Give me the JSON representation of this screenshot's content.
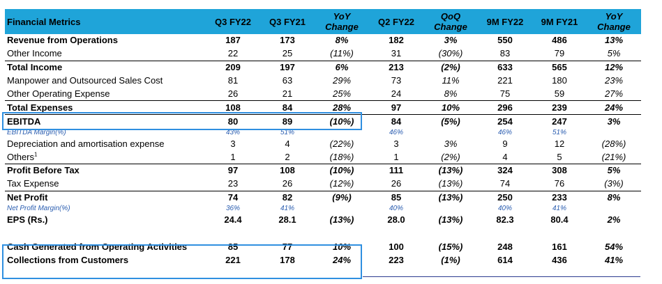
{
  "headers": [
    "Financial Metrics",
    "Q3 FY22",
    "Q3 FY21",
    "YoY\nChange",
    "Q2 FY22",
    "QoQ\nChange",
    "9M FY22",
    "9M FY21",
    "YoY\nChange"
  ],
  "rows": [
    {
      "label": "Revenue from Operations",
      "cells": [
        "187",
        "173",
        "8%",
        "182",
        "3%",
        "550",
        "486",
        "13%"
      ]
    },
    {
      "label": "Other Income",
      "cells": [
        "22",
        "25",
        "(11%)",
        "31",
        "(30%)",
        "83",
        "79",
        "5%"
      ]
    },
    {
      "label": "Total Income",
      "cells": [
        "209",
        "197",
        "6%",
        "213",
        "(2%)",
        "633",
        "565",
        "12%"
      ]
    },
    {
      "label": "Manpower and Outsourced Sales Cost",
      "cells": [
        "81",
        "63",
        "29%",
        "73",
        "11%",
        "221",
        "180",
        "23%"
      ]
    },
    {
      "label": "Other Operating Expense",
      "cells": [
        "26",
        "21",
        "25%",
        "24",
        "8%",
        "75",
        "59",
        "27%"
      ]
    },
    {
      "label": "Total Expenses",
      "cells": [
        "108",
        "84",
        "28%",
        "97",
        "10%",
        "296",
        "239",
        "24%"
      ]
    },
    {
      "label": "EBITDA",
      "cells": [
        "80",
        "89",
        "(10%)",
        "84",
        "(5%)",
        "254",
        "247",
        "3%"
      ]
    },
    {
      "label": "EBITDA Margin(%)",
      "cells": [
        "43%",
        "51%",
        "",
        "46%",
        "",
        "46%",
        "51%",
        ""
      ]
    },
    {
      "label": "Depreciation and amortisation expense",
      "cells": [
        "3",
        "4",
        "(22%)",
        "3",
        "3%",
        "9",
        "12",
        "(28%)"
      ]
    },
    {
      "label": "Others",
      "sup": "1",
      "cells": [
        "1",
        "2",
        "(18%)",
        "1",
        "(2%)",
        "4",
        "5",
        "(21%)"
      ]
    },
    {
      "label": "Profit Before Tax",
      "cells": [
        "97",
        "108",
        "(10%)",
        "111",
        "(13%)",
        "324",
        "308",
        "5%"
      ]
    },
    {
      "label": "Tax Expense",
      "cells": [
        "23",
        "26",
        "(12%)",
        "26",
        "(13%)",
        "74",
        "76",
        "(3%)"
      ]
    },
    {
      "label": "Net Profit",
      "cells": [
        "74",
        "82",
        "(9%)",
        "85",
        "(13%)",
        "250",
        "233",
        "8%"
      ]
    },
    {
      "label": "Net Profit Margin(%)",
      "cells": [
        "36%",
        "41%",
        "",
        "40%",
        "",
        "40%",
        "41%",
        ""
      ]
    },
    {
      "label": "EPS (Rs.)",
      "cells": [
        "24.4",
        "28.1",
        "(13%)",
        "28.0",
        "(13%)",
        "82.3",
        "80.4",
        "2%"
      ]
    },
    {
      "label": "Cash Generated from Operating Activities",
      "cells": [
        "85",
        "77",
        "10%",
        "100",
        "(15%)",
        "248",
        "161",
        "54%"
      ]
    },
    {
      "label": "Collections from Customers",
      "cells": [
        "221",
        "178",
        "24%",
        "223",
        "(1%)",
        "614",
        "436",
        "41%"
      ]
    }
  ],
  "colors": {
    "header_bg": "#1fa4d9",
    "highlight_border": "#2f8fe0",
    "margin_text": "#2a5db0"
  }
}
